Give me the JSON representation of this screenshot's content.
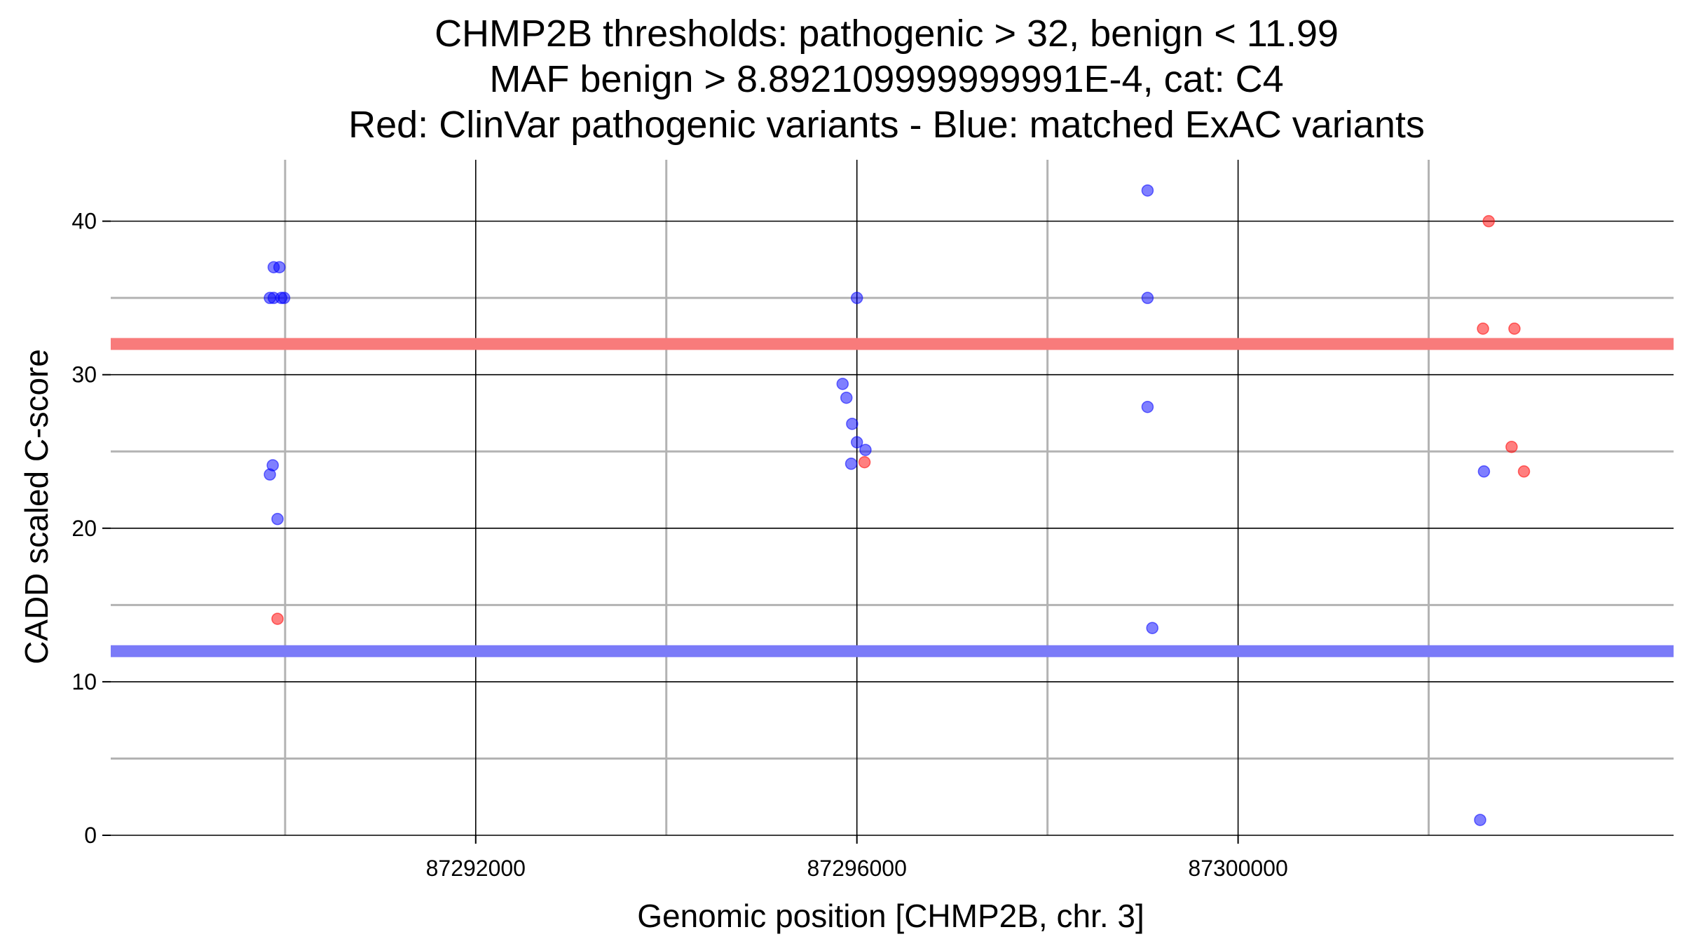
{
  "chart_data": {
    "type": "scatter",
    "title_lines": [
      "CHMP2B thresholds: pathogenic > 32, benign < 11.99",
      "MAF benign > 8.892109999999991E-4, cat: C4",
      "Red: ClinVar pathogenic variants - Blue: matched ExAC variants"
    ],
    "xlabel": "Genomic position [CHMP2B, chr. 3]",
    "ylabel": "CADD scaled C-score",
    "xlim": [
      87288170,
      87304570
    ],
    "ylim": [
      0,
      44
    ],
    "x_ticks": [
      87292000,
      87296000,
      87300000
    ],
    "x_tick_labels": [
      "87292000",
      "87296000",
      "87300000"
    ],
    "x_minor_lines": [
      87290000,
      87294000,
      87298000,
      87302000
    ],
    "y_ticks": [
      0,
      10,
      20,
      30,
      40
    ],
    "y_tick_labels": [
      "0",
      "10",
      "20",
      "30",
      "40"
    ],
    "y_minor_lines": [
      5,
      15,
      25,
      35
    ],
    "grid": true,
    "thresholds": [
      {
        "name": "pathogenic",
        "value": 32,
        "color": "#f87b7b"
      },
      {
        "name": "benign",
        "value": 11.99,
        "color": "#7b7bf8"
      }
    ],
    "series": [
      {
        "color": "#0000ff",
        "points": [
          {
            "x": 87289880,
            "y": 37
          },
          {
            "x": 87289940,
            "y": 37
          },
          {
            "x": 87289840,
            "y": 35
          },
          {
            "x": 87289880,
            "y": 35
          },
          {
            "x": 87289960,
            "y": 35
          },
          {
            "x": 87289990,
            "y": 35
          },
          {
            "x": 87289870,
            "y": 24.1
          },
          {
            "x": 87289840,
            "y": 23.5
          },
          {
            "x": 87289920,
            "y": 20.6
          },
          {
            "x": 87295850,
            "y": 29.4
          },
          {
            "x": 87295890,
            "y": 28.5
          },
          {
            "x": 87295950,
            "y": 26.8
          },
          {
            "x": 87296000,
            "y": 25.6
          },
          {
            "x": 87296090,
            "y": 25.1
          },
          {
            "x": 87295940,
            "y": 24.2
          },
          {
            "x": 87296000,
            "y": 35
          },
          {
            "x": 87299050,
            "y": 42
          },
          {
            "x": 87299050,
            "y": 35
          },
          {
            "x": 87299050,
            "y": 27.9
          },
          {
            "x": 87299100,
            "y": 13.5
          },
          {
            "x": 87302580,
            "y": 23.7
          },
          {
            "x": 87302540,
            "y": 1
          }
        ]
      },
      {
        "color": "#ff0000",
        "points": [
          {
            "x": 87289920,
            "y": 14.1
          },
          {
            "x": 87296080,
            "y": 24.3
          },
          {
            "x": 87302630,
            "y": 40
          },
          {
            "x": 87302570,
            "y": 33
          },
          {
            "x": 87302900,
            "y": 33
          },
          {
            "x": 87302870,
            "y": 25.3
          },
          {
            "x": 87303000,
            "y": 23.7
          }
        ]
      }
    ]
  }
}
